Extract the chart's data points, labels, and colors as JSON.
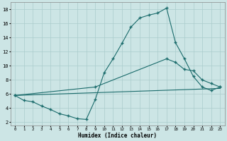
{
  "xlabel": "Humidex (Indice chaleur)",
  "xlim": [
    -0.5,
    23.5
  ],
  "ylim": [
    1.5,
    19.0
  ],
  "xticks": [
    0,
    1,
    2,
    3,
    4,
    5,
    6,
    7,
    8,
    9,
    10,
    11,
    12,
    13,
    14,
    15,
    16,
    17,
    18,
    19,
    20,
    21,
    22,
    23
  ],
  "yticks": [
    2,
    4,
    6,
    8,
    10,
    12,
    14,
    16,
    18
  ],
  "bg_color": "#cce5e5",
  "line_color": "#1a6b6b",
  "grid_color": "#aacccc",
  "series1_x": [
    0,
    1,
    2,
    3,
    4,
    5,
    6,
    7,
    8,
    9,
    10,
    11,
    12,
    13,
    14,
    15,
    16,
    17,
    18,
    19,
    20,
    21,
    22,
    23
  ],
  "series1_y": [
    5.8,
    5.1,
    4.9,
    4.3,
    3.8,
    3.2,
    2.9,
    2.5,
    2.4,
    5.2,
    9.0,
    11.0,
    13.2,
    15.5,
    16.8,
    17.2,
    17.5,
    18.2,
    13.3,
    11.0,
    8.5,
    7.0,
    6.5,
    7.0
  ],
  "series2_x": [
    0,
    9,
    17,
    18,
    19,
    20,
    21,
    22,
    23
  ],
  "series2_y": [
    5.8,
    7.0,
    11.0,
    10.5,
    9.5,
    9.3,
    8.0,
    7.5,
    7.0
  ],
  "series3_x": [
    0,
    23
  ],
  "series3_y": [
    5.8,
    6.8
  ],
  "marker": "+"
}
